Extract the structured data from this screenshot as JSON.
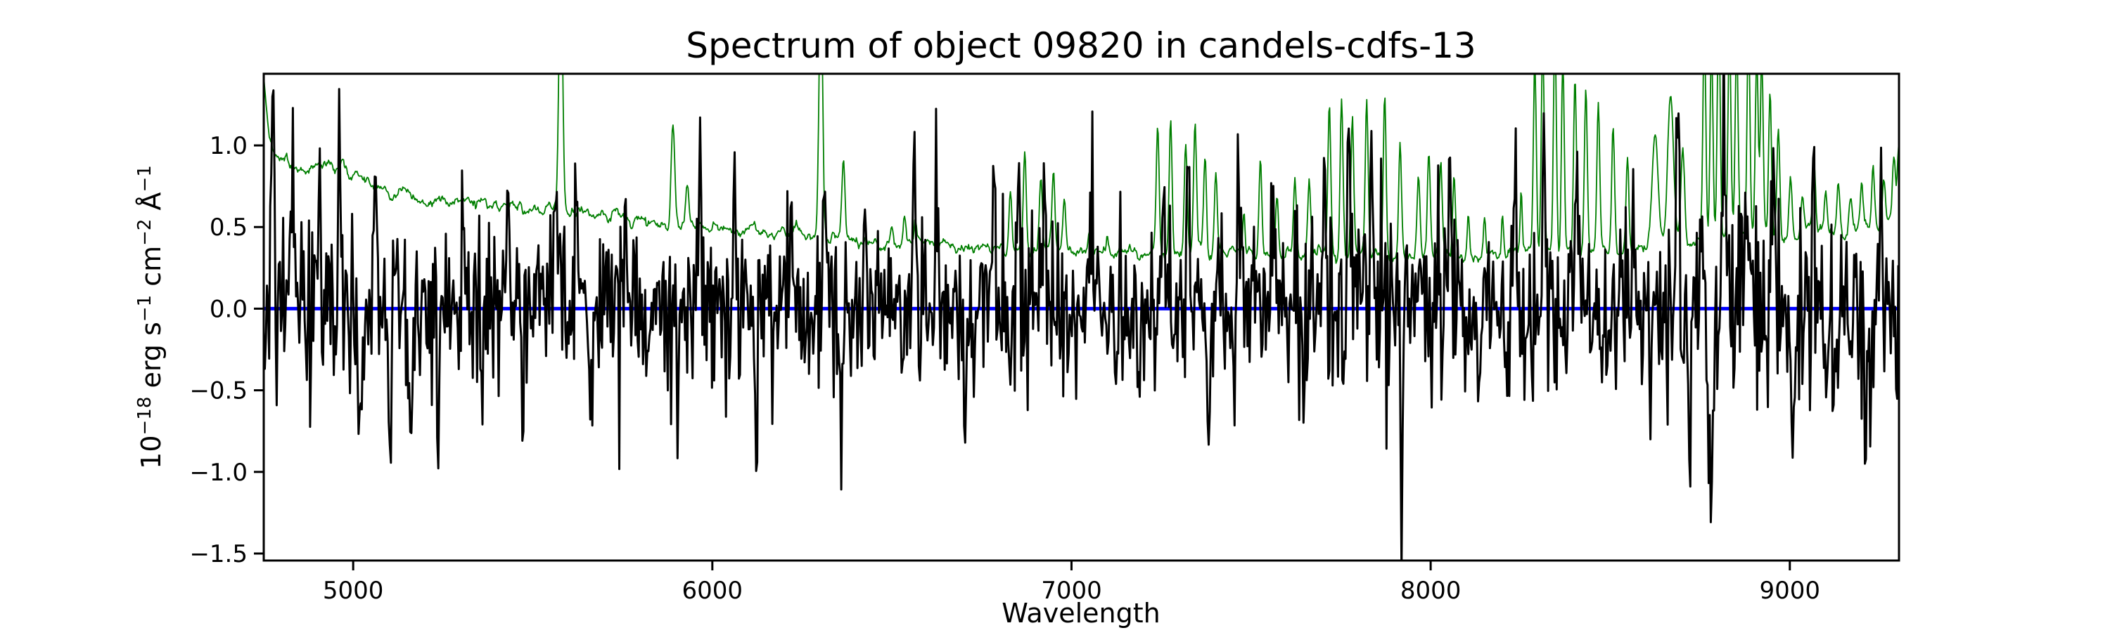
{
  "figure": {
    "background": "#ffffff"
  },
  "chart_data": {
    "type": "line",
    "title": "Spectrum of object 09820 in candels-cdfs-13",
    "xlabel": "Wavelength",
    "ylabel": "10⁻¹⁸ erg s⁻¹ cm⁻² Å⁻¹",
    "ylabel_segments": [
      {
        "text": "10",
        "sup": false
      },
      {
        "text": "−18",
        "sup": true
      },
      {
        "text": " erg s",
        "sup": false
      },
      {
        "text": "−1",
        "sup": true
      },
      {
        "text": " cm",
        "sup": false
      },
      {
        "text": "−2",
        "sup": true
      },
      {
        "text": " Å",
        "sup": false
      },
      {
        "text": "−1",
        "sup": true
      }
    ],
    "xlim": [
      4751,
      9304
    ],
    "ylim": [
      -1.543,
      1.439
    ],
    "xticks": [
      5000,
      6000,
      7000,
      8000,
      9000
    ],
    "xtick_labels": [
      "5000",
      "6000",
      "7000",
      "8000",
      "9000"
    ],
    "yticks": [
      1.0,
      0.5,
      0.0,
      -0.5,
      -1.0,
      -1.5
    ],
    "ytick_labels": [
      "1.0",
      "0.5",
      "0.0",
      "−0.5",
      "−1.0",
      "−1.5"
    ],
    "grid": false,
    "legend": null,
    "colors": {
      "flux": "#000000",
      "sky_error": "#007f00",
      "zero_line": "#0000ff",
      "text": "#000000",
      "frame": "#000000",
      "background": "#ffffff"
    },
    "series": [
      {
        "name": "zero-level",
        "kind": "hline",
        "color": "#0000ff",
        "linewidth": 5,
        "y": 0.0
      },
      {
        "name": "sky-error-spectrum",
        "kind": "continuum-plus-spikes",
        "color": "#007f00",
        "linewidth": 1.8,
        "sample_step": 2.2,
        "wiggle_sigma": 0.013,
        "continuum_keypoints": [
          [
            4751,
            1.44
          ],
          [
            4758,
            1.25
          ],
          [
            4766,
            1.05
          ],
          [
            4775,
            0.95
          ],
          [
            4788,
            0.9
          ],
          [
            4805,
            0.89
          ],
          [
            4830,
            0.88
          ],
          [
            4860,
            0.89
          ],
          [
            4880,
            0.86
          ],
          [
            4910,
            0.87
          ],
          [
            4930,
            0.88
          ],
          [
            4950,
            0.85
          ],
          [
            4975,
            0.83
          ],
          [
            5000,
            0.82
          ],
          [
            5050,
            0.78
          ],
          [
            5080,
            0.75
          ],
          [
            5100,
            0.72
          ],
          [
            5150,
            0.7
          ],
          [
            5200,
            0.68
          ],
          [
            5250,
            0.67
          ],
          [
            5300,
            0.66
          ],
          [
            5350,
            0.64
          ],
          [
            5400,
            0.63
          ],
          [
            5450,
            0.62
          ],
          [
            5500,
            0.61
          ],
          [
            5550,
            0.6
          ],
          [
            5600,
            0.59
          ],
          [
            5650,
            0.58
          ],
          [
            5700,
            0.56
          ],
          [
            5750,
            0.55
          ],
          [
            5800,
            0.54
          ],
          [
            5850,
            0.53
          ],
          [
            5900,
            0.52
          ],
          [
            5950,
            0.51
          ],
          [
            6000,
            0.5
          ],
          [
            6050,
            0.49
          ],
          [
            6100,
            0.48
          ],
          [
            6150,
            0.47
          ],
          [
            6200,
            0.46
          ],
          [
            6300,
            0.45
          ],
          [
            6400,
            0.43
          ],
          [
            6500,
            0.41
          ],
          [
            6600,
            0.4
          ],
          [
            6700,
            0.38
          ],
          [
            6800,
            0.37
          ],
          [
            6900,
            0.37
          ],
          [
            7000,
            0.36
          ],
          [
            7100,
            0.355
          ],
          [
            7200,
            0.35
          ],
          [
            7300,
            0.345
          ],
          [
            7400,
            0.34
          ],
          [
            7500,
            0.34
          ],
          [
            7600,
            0.335
          ],
          [
            7700,
            0.335
          ],
          [
            7800,
            0.33
          ],
          [
            7900,
            0.33
          ],
          [
            8000,
            0.32
          ],
          [
            8100,
            0.32
          ],
          [
            8200,
            0.33
          ],
          [
            8300,
            0.34
          ],
          [
            8400,
            0.35
          ],
          [
            8500,
            0.36
          ],
          [
            8600,
            0.38
          ],
          [
            8700,
            0.4
          ],
          [
            8800,
            0.42
          ],
          [
            8900,
            0.43
          ],
          [
            9000,
            0.44
          ],
          [
            9100,
            0.45
          ],
          [
            9150,
            0.46
          ],
          [
            9200,
            0.48
          ],
          [
            9250,
            0.5
          ],
          [
            9300,
            0.52
          ]
        ],
        "spikes": [
          [
            5578,
            1.6,
            5
          ],
          [
            5890,
            0.65,
            5
          ],
          [
            5930,
            0.25,
            4
          ],
          [
            6302,
            1.6,
            5
          ],
          [
            6365,
            0.46,
            4
          ],
          [
            6500,
            0.12,
            4
          ],
          [
            6535,
            0.15,
            4
          ],
          [
            6565,
            0.12,
            3
          ],
          [
            6830,
            0.38,
            4
          ],
          [
            6870,
            0.57,
            4
          ],
          [
            6915,
            0.42,
            4
          ],
          [
            6950,
            0.47,
            4
          ],
          [
            6980,
            0.32,
            4
          ],
          [
            7050,
            0.12,
            3
          ],
          [
            7100,
            0.1,
            3
          ],
          [
            7240,
            0.75,
            4
          ],
          [
            7276,
            0.85,
            4
          ],
          [
            7318,
            0.69,
            4
          ],
          [
            7344,
            0.79,
            4
          ],
          [
            7372,
            0.63,
            4
          ],
          [
            7402,
            0.49,
            4
          ],
          [
            7480,
            0.24,
            3
          ],
          [
            7526,
            0.61,
            4
          ],
          [
            7572,
            0.36,
            4
          ],
          [
            7622,
            0.46,
            4
          ],
          [
            7662,
            0.41,
            4
          ],
          [
            7718,
            0.91,
            4
          ],
          [
            7752,
            0.96,
            4
          ],
          [
            7782,
            0.85,
            4
          ],
          [
            7822,
            0.92,
            4
          ],
          [
            7872,
            0.97,
            4
          ],
          [
            7915,
            0.66,
            4
          ],
          [
            7966,
            0.48,
            4
          ],
          [
            7995,
            0.62,
            4
          ],
          [
            8028,
            0.56,
            4
          ],
          [
            8065,
            0.51,
            4
          ],
          [
            8105,
            0.27,
            3
          ],
          [
            8150,
            0.22,
            3
          ],
          [
            8200,
            0.27,
            3
          ],
          [
            8252,
            0.37,
            3
          ],
          [
            8290,
            1.2,
            4
          ],
          [
            8312,
            1.3,
            4
          ],
          [
            8346,
            1.4,
            4
          ],
          [
            8368,
            1.2,
            4
          ],
          [
            8402,
            1.1,
            4
          ],
          [
            8432,
            1.0,
            4
          ],
          [
            8467,
            0.9,
            4
          ],
          [
            8508,
            0.78,
            4
          ],
          [
            8548,
            0.58,
            4
          ],
          [
            8625,
            0.7,
            8
          ],
          [
            8668,
            0.9,
            8
          ],
          [
            8702,
            0.55,
            5
          ],
          [
            8762,
            1.3,
            4
          ],
          [
            8782,
            1.2,
            4
          ],
          [
            8802,
            1.45,
            4
          ],
          [
            8832,
            1.3,
            4
          ],
          [
            8852,
            1.2,
            4
          ],
          [
            8885,
            1.35,
            4
          ],
          [
            8908,
            1.1,
            4
          ],
          [
            8922,
            1.05,
            4
          ],
          [
            8945,
            0.93,
            4
          ],
          [
            8968,
            0.67,
            4
          ],
          [
            9002,
            0.36,
            4
          ],
          [
            9035,
            0.26,
            4
          ],
          [
            9068,
            0.39,
            4
          ],
          [
            9100,
            0.25,
            4
          ],
          [
            9135,
            0.31,
            4
          ],
          [
            9170,
            0.2,
            4
          ],
          [
            9200,
            0.24,
            4
          ],
          [
            9232,
            0.37,
            4
          ],
          [
            9262,
            0.26,
            4
          ],
          [
            9290,
            0.38,
            4
          ],
          [
            9304,
            0.5,
            4
          ]
        ]
      },
      {
        "name": "observed-flux",
        "kind": "noise-plus-features",
        "color": "#000000",
        "linewidth": 3,
        "sample_step": 3.0,
        "noise_mean": 0.0,
        "noise_sigma_keypoints": [
          [
            4751,
            0.3
          ],
          [
            4900,
            0.3
          ],
          [
            5000,
            0.28
          ],
          [
            5100,
            0.3
          ],
          [
            5300,
            0.26
          ],
          [
            5500,
            0.28
          ],
          [
            5700,
            0.24
          ],
          [
            5900,
            0.25
          ],
          [
            6100,
            0.24
          ],
          [
            6300,
            0.26
          ],
          [
            6500,
            0.22
          ],
          [
            6700,
            0.23
          ],
          [
            6900,
            0.25
          ],
          [
            7100,
            0.22
          ],
          [
            7300,
            0.25
          ],
          [
            7500,
            0.23
          ],
          [
            7700,
            0.28
          ],
          [
            7900,
            0.3
          ],
          [
            8100,
            0.24
          ],
          [
            8300,
            0.28
          ],
          [
            8500,
            0.27
          ],
          [
            8700,
            0.31
          ],
          [
            8900,
            0.32
          ],
          [
            9100,
            0.29
          ],
          [
            9300,
            0.31
          ]
        ],
        "features": [
          [
            4775,
            0.92,
            4
          ],
          [
            4832,
            0.88,
            4
          ],
          [
            4905,
            0.78,
            4
          ],
          [
            4962,
            0.85,
            4
          ],
          [
            5018,
            -0.62,
            4
          ],
          [
            5062,
            0.88,
            4
          ],
          [
            5102,
            -0.8,
            4
          ],
          [
            5160,
            -0.84,
            4
          ],
          [
            5237,
            -0.82,
            4
          ],
          [
            5305,
            0.64,
            4
          ],
          [
            5360,
            -0.56,
            4
          ],
          [
            5433,
            0.84,
            4
          ],
          [
            5472,
            -0.58,
            4
          ],
          [
            5562,
            0.92,
            4
          ],
          [
            5622,
            0.74,
            4
          ],
          [
            5664,
            -0.62,
            4
          ],
          [
            5758,
            0.6,
            4
          ],
          [
            5822,
            -0.56,
            4
          ],
          [
            5903,
            -0.72,
            4
          ],
          [
            5965,
            0.74,
            4
          ],
          [
            6062,
            0.8,
            4
          ],
          [
            6122,
            -0.86,
            4
          ],
          [
            6218,
            0.58,
            4
          ],
          [
            6312,
            0.86,
            4
          ],
          [
            6357,
            -0.62,
            4
          ],
          [
            6425,
            0.74,
            4
          ],
          [
            6562,
            0.78,
            4
          ],
          [
            6625,
            0.7,
            4
          ],
          [
            6705,
            -0.56,
            4
          ],
          [
            6782,
            0.84,
            4
          ],
          [
            6852,
            0.86,
            4
          ],
          [
            6925,
            0.73,
            4
          ],
          [
            7055,
            0.7,
            4
          ],
          [
            7125,
            -0.62,
            4
          ],
          [
            7255,
            0.74,
            4
          ],
          [
            7325,
            0.84,
            4
          ],
          [
            7385,
            -0.66,
            4
          ],
          [
            7465,
            0.9,
            4
          ],
          [
            7565,
            0.68,
            4
          ],
          [
            7645,
            -0.76,
            4
          ],
          [
            7705,
            0.78,
            4
          ],
          [
            7772,
            1.3,
            4
          ],
          [
            7835,
            0.98,
            4
          ],
          [
            7920,
            -1.3,
            4
          ],
          [
            7968,
            0.6,
            4
          ],
          [
            8055,
            0.7,
            4
          ],
          [
            8135,
            -0.62,
            4
          ],
          [
            8235,
            0.74,
            4
          ],
          [
            8315,
            0.9,
            4
          ],
          [
            8405,
            0.8,
            4
          ],
          [
            8475,
            -0.62,
            4
          ],
          [
            8565,
            0.7,
            4
          ],
          [
            8688,
            1.15,
            4
          ],
          [
            8720,
            -0.9,
            4
          ],
          [
            8780,
            -1.45,
            4
          ],
          [
            8815,
            0.94,
            4
          ],
          [
            8875,
            0.8,
            4
          ],
          [
            8952,
            0.94,
            4
          ],
          [
            9010,
            -1.05,
            4
          ],
          [
            9065,
            0.7,
            4
          ],
          [
            9125,
            -0.76,
            4
          ],
          [
            9210,
            -0.72,
            4
          ],
          [
            9255,
            0.8,
            4
          ]
        ]
      }
    ]
  }
}
